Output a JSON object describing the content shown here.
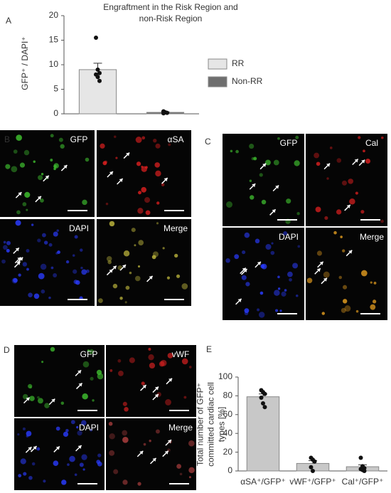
{
  "figure": {
    "panel_labels": [
      "A",
      "B",
      "C",
      "D",
      "E"
    ],
    "panel_B": {
      "tiles": [
        "GFP",
        "αSA",
        "DAPI",
        "Merge"
      ]
    },
    "panel_C": {
      "tiles": [
        "GFP",
        "Cal",
        "DAPI",
        "Merge"
      ]
    },
    "panel_D": {
      "tiles": [
        "GFP",
        "vWF",
        "DAPI",
        "Merge"
      ]
    }
  },
  "chart_data": [
    {
      "type": "bar",
      "title": "Engraftment in the Risk Region and non-Risk Region",
      "y_label": "GFP⁺ / DAPI⁺",
      "categories": [
        null,
        null
      ],
      "series": [
        {
          "name": "RR",
          "color": "#e6e6e6",
          "values": [
            9,
            null
          ],
          "errors": [
            1.3,
            null
          ],
          "points": [
            [
              15.5,
              9,
              8.3,
              8,
              7.5,
              6.7
            ],
            null
          ]
        },
        {
          "name": "Non-RR",
          "color": "#6e6e6e",
          "values": [
            null,
            0.3
          ],
          "errors": [
            null,
            0.1
          ],
          "points": [
            null,
            [
              0.5,
              0.3,
              0.2,
              0.1
            ]
          ]
        }
      ],
      "ylim": [
        0,
        20
      ],
      "yticks": [
        0,
        5,
        10,
        15,
        20
      ]
    },
    {
      "type": "bar",
      "y_label": "Total number of GFP⁺ committed cardiac cell types [%]",
      "categories": [
        "αSA⁺/GFP⁺",
        "vWF⁺/GFP⁺",
        "Cal⁺/GFP⁺"
      ],
      "values": [
        79,
        8,
        4.5
      ],
      "errors": [
        3,
        3,
        2
      ],
      "color": "#c8c8c8",
      "points": [
        [
          86,
          84,
          82,
          78,
          72,
          68
        ],
        [
          14,
          12,
          10,
          4,
          0
        ],
        [
          14,
          5,
          3,
          2,
          1,
          0
        ]
      ],
      "ylim": [
        0,
        100
      ],
      "yticks": [
        0,
        20,
        40,
        60,
        80,
        100
      ]
    }
  ]
}
